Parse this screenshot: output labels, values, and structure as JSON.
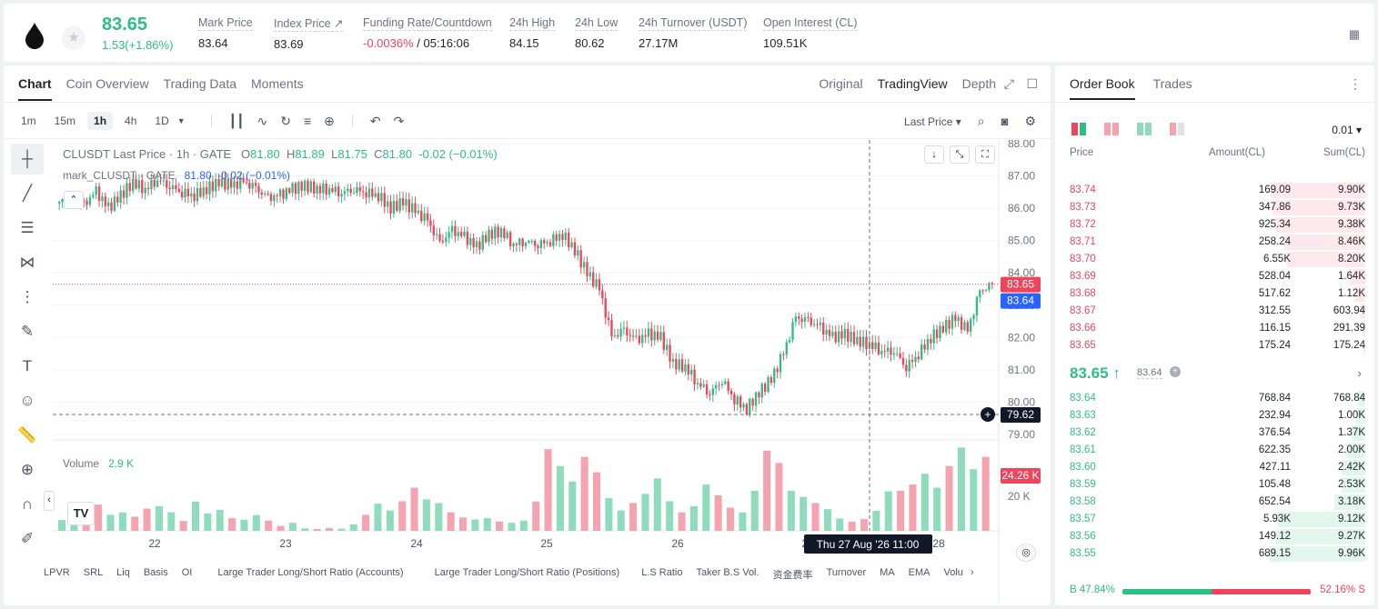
{
  "ticker": {
    "last_price": "83.65",
    "change": "1.53(+1.86%)",
    "stats": [
      {
        "label": "Mark Price",
        "value": "83.64"
      },
      {
        "label": "Index Price ↗",
        "value": "83.69"
      },
      {
        "label": "Funding Rate/Countdown",
        "value_neg": "-0.0036%",
        "value": " / 05:16:06"
      },
      {
        "label": "24h High",
        "value": "84.15"
      },
      {
        "label": "24h Low",
        "value": "80.62"
      },
      {
        "label": "24h Turnover (USDT)",
        "value": "27.17M"
      },
      {
        "label": "Open Interest (CL)",
        "value": "109.51K"
      }
    ]
  },
  "chart_tabs": [
    "Chart",
    "Coin Overview",
    "Trading Data",
    "Moments"
  ],
  "chart_views": [
    "Original",
    "TradingView",
    "Depth"
  ],
  "intervals": [
    "1m",
    "15m",
    "1h",
    "4h",
    "1D"
  ],
  "price_source": "Last Price ▾",
  "legend": {
    "symbol": "CLUSDT Last Price · 1h · GATE",
    "o_label": "O",
    "o": "81.80",
    "h_label": "H",
    "h": "81.89",
    "l_label": "L",
    "l": "81.75",
    "c_label": "C",
    "c": "81.80",
    "chg": "-0.02 (−0.01%)",
    "mark_label": "mark_CLUSDT · GATE",
    "mark_value": "81.80",
    "mark_chg": "-0.02 (−0.01%)"
  },
  "volume": {
    "label": "Volume",
    "value": "2.9 K"
  },
  "crosshair_date": "Thu 27 Aug '26   11:00",
  "indicators": [
    "LPVR",
    "SRL",
    "Liq",
    "Basis",
    "OI",
    "Large Trader Long/Short Ratio (Accounts)",
    "Large Trader Long/Short Ratio (Positions)",
    "L.S Ratio",
    "Taker B.S Vol.",
    "资金费率",
    "Turnover",
    "MA",
    "EMA",
    "Volu"
  ],
  "colors": {
    "up": "#2ebd85",
    "down": "#f0445d",
    "vol_up": "#8fdcbc",
    "vol_down": "#f5a3ae"
  },
  "chart_data": {
    "type": "candlestick",
    "x_ticks": [
      "22",
      "23",
      "24",
      "25",
      "26",
      "27",
      "28"
    ],
    "y_ticks": [
      "88.00",
      "87.00",
      "86.00",
      "85.00",
      "84.00",
      "83.00",
      "82.00",
      "81.00",
      "80.00",
      "79.00"
    ],
    "ylim": [
      79,
      88
    ],
    "last_price_label": "83.65",
    "mark_price_label": "83.64",
    "crosshair_price_label": "79.62",
    "crosshair_price": 79.62,
    "volume_label": "24.26 K",
    "volume_tick": "20 K",
    "volume_max": 28000,
    "close_path": [
      86.2,
      86.3,
      86.1,
      86.5,
      86.0,
      86.4,
      86.8,
      86.6,
      86.9,
      86.7,
      86.5,
      86.4,
      86.6,
      86.8,
      86.7,
      86.8,
      86.6,
      86.3,
      86.4,
      86.6,
      86.7,
      86.6,
      86.6,
      86.5,
      86.6,
      86.5,
      86.4,
      86.0,
      86.2,
      85.9,
      85.6,
      84.9,
      85.3,
      85.1,
      84.8,
      85.2,
      85.3,
      84.9,
      85.0,
      84.9,
      85.0,
      85.2,
      84.7,
      84.0,
      83.5,
      82.0,
      82.2,
      81.9,
      82.1,
      82.0,
      81.2,
      81.1,
      80.6,
      80.3,
      80.7,
      80.1,
      79.8,
      80.3,
      80.7,
      81.5,
      82.6,
      82.5,
      82.3,
      82.0,
      82.1,
      81.9,
      81.8,
      81.6,
      81.6,
      81.1,
      81.5,
      82.0,
      82.3,
      82.6,
      82.2,
      83.4,
      83.65
    ],
    "volume": [
      3500,
      4200,
      3000,
      8500,
      5200,
      6000,
      4600,
      7200,
      8000,
      6000,
      3200,
      9500,
      5600,
      6800,
      4100,
      3600,
      5100,
      3300,
      1600,
      2600,
      800,
      600,
      900,
      700,
      2100,
      5200,
      8800,
      6600,
      9600,
      14000,
      10200,
      9000,
      6000,
      4300,
      3700,
      4100,
      3000,
      2600,
      3300,
      9500,
      26500,
      21000,
      16000,
      24000,
      19000,
      10600,
      6600,
      9000,
      12000,
      17000,
      9600,
      6000,
      8000,
      15000,
      11500,
      7500,
      6000,
      13000,
      26000,
      22000,
      13000,
      11000,
      9000,
      7000,
      4000,
      3000,
      3800,
      6500,
      12800,
      13000,
      15000,
      18500,
      14000,
      21000,
      27000,
      20000,
      24000
    ]
  },
  "orderbook": {
    "tabs": [
      "Order Book",
      "Trades"
    ],
    "precision": "0.01 ▾",
    "headers": {
      "price": "Price",
      "amount": "Amount(CL)",
      "sum": "Sum(CL)"
    },
    "asks": [
      {
        "price": "83.74",
        "amount": "169.09",
        "sum": "9.90K",
        "depth": 0.99
      },
      {
        "price": "83.73",
        "amount": "347.86",
        "sum": "9.73K",
        "depth": 0.97
      },
      {
        "price": "83.72",
        "amount": "925.34",
        "sum": "9.38K",
        "depth": 0.94
      },
      {
        "price": "83.71",
        "amount": "258.24",
        "sum": "8.46K",
        "depth": 0.85
      },
      {
        "price": "83.70",
        "amount": "6.55K",
        "sum": "8.20K",
        "depth": 0.82
      },
      {
        "price": "83.69",
        "amount": "528.04",
        "sum": "1.64K",
        "depth": 0.16
      },
      {
        "price": "83.68",
        "amount": "517.62",
        "sum": "1.12K",
        "depth": 0.11
      },
      {
        "price": "83.67",
        "amount": "312.55",
        "sum": "603.94",
        "depth": 0.06
      },
      {
        "price": "83.66",
        "amount": "116.15",
        "sum": "291.39",
        "depth": 0.03
      },
      {
        "price": "83.65",
        "amount": "175.24",
        "sum": "175.24",
        "depth": 0.02
      }
    ],
    "mid_price": "83.65 ↑",
    "mid_mark": "83.64",
    "bids": [
      {
        "price": "83.64",
        "amount": "768.84",
        "sum": "768.84",
        "depth": 0.08
      },
      {
        "price": "83.63",
        "amount": "232.94",
        "sum": "1.00K",
        "depth": 0.1
      },
      {
        "price": "83.62",
        "amount": "376.54",
        "sum": "1.37K",
        "depth": 0.14
      },
      {
        "price": "83.61",
        "amount": "622.35",
        "sum": "2.00K",
        "depth": 0.2
      },
      {
        "price": "83.60",
        "amount": "427.11",
        "sum": "2.42K",
        "depth": 0.24
      },
      {
        "price": "83.59",
        "amount": "105.48",
        "sum": "2.53K",
        "depth": 0.25
      },
      {
        "price": "83.58",
        "amount": "652.54",
        "sum": "3.18K",
        "depth": 0.32
      },
      {
        "price": "83.57",
        "amount": "5.93K",
        "sum": "9.12K",
        "depth": 0.91
      },
      {
        "price": "83.56",
        "amount": "149.12",
        "sum": "9.27K",
        "depth": 0.93
      },
      {
        "price": "83.55",
        "amount": "689.15",
        "sum": "9.96K",
        "depth": 1.0
      }
    ],
    "buy_ratio": "B 47.84%",
    "sell_ratio": "52.16% S",
    "buy_fraction": 0.4784
  }
}
